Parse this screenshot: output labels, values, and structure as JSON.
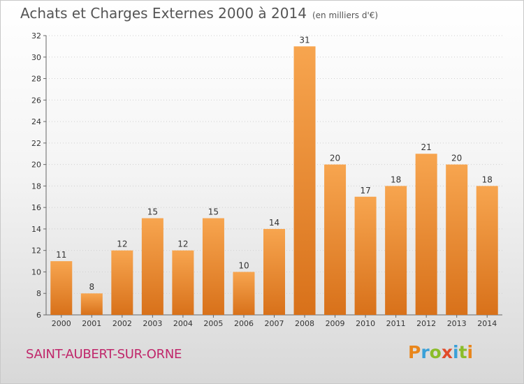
{
  "title": "Achats et Charges Externes 2000 à 2014",
  "subtitle": "(en milliers d'€)",
  "location": "SAINT-AUBERT-SUR-ORNE",
  "brand": {
    "letters": [
      "P",
      "r",
      "o",
      "x",
      "i",
      "t",
      "i"
    ],
    "colors": [
      "#e9861b",
      "#3aa0d8",
      "#8bbd2a",
      "#e14b2a",
      "#3aa0d8",
      "#8bbd2a",
      "#e9861b"
    ]
  },
  "colors": {
    "bar_top": "#f7a54f",
    "bar_bottom": "#d8711a",
    "text": "#555555",
    "grid": "#d0d0d0"
  },
  "chart_data": {
    "type": "bar",
    "title": "Achats et Charges Externes 2000 à 2014",
    "subtitle": "(en milliers d'€)",
    "categories": [
      "2000",
      "2001",
      "2002",
      "2003",
      "2004",
      "2005",
      "2006",
      "2007",
      "2008",
      "2009",
      "2010",
      "2011",
      "2012",
      "2013",
      "2014"
    ],
    "values": [
      11,
      8,
      12,
      15,
      12,
      15,
      10,
      14,
      31,
      20,
      17,
      18,
      21,
      20,
      18
    ],
    "ylim": [
      6,
      32
    ],
    "yticks": [
      6,
      8,
      10,
      12,
      14,
      16,
      18,
      20,
      22,
      24,
      26,
      28,
      30,
      32
    ],
    "grid": true,
    "legend": "none"
  }
}
